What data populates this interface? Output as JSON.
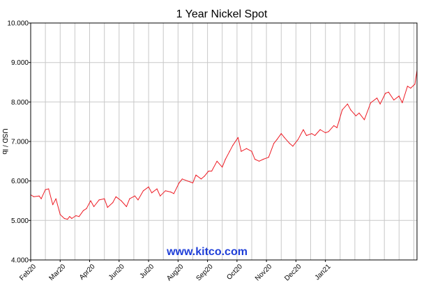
{
  "chart_data": {
    "type": "line",
    "title": "1 Year Nickel Spot",
    "watermark": "www.kitco.com",
    "xlabel": "",
    "ylabel": "USD / lb",
    "ylim": [
      4.0,
      10.0
    ],
    "yticks": [
      4.0,
      5.0,
      6.0,
      7.0,
      8.0,
      9.0,
      10.0
    ],
    "ytick_labels": [
      "4.000",
      "5.000",
      "6.000",
      "7.000",
      "8.000",
      "9.000",
      "10.000"
    ],
    "xlim": [
      "2020-02-10",
      "2021-02-11"
    ],
    "xticks": [
      {
        "label": "Feb20",
        "date": "2020-02-10"
      },
      {
        "label": "Mar20",
        "date": "2020-03-09"
      },
      {
        "label": "Apr20",
        "date": "2020-04-06"
      },
      {
        "label": "Jun20",
        "date": "2020-05-04"
      },
      {
        "label": "Jul20",
        "date": "2020-06-01"
      },
      {
        "label": "Aug20",
        "date": "2020-06-29"
      },
      {
        "label": "Sep20",
        "date": "2020-07-27"
      },
      {
        "label": "Oct20",
        "date": "2020-08-24"
      },
      {
        "label": "Nov20",
        "date": "2020-09-21"
      },
      {
        "label": "Dec20",
        "date": "2020-10-19"
      },
      {
        "label": "Jan21",
        "date": "2020-11-16"
      }
    ],
    "x_gridlines": [
      "2020-02-10",
      "2020-02-24",
      "2020-03-09",
      "2020-03-23",
      "2020-04-06",
      "2020-04-20",
      "2020-05-04",
      "2020-05-18",
      "2020-06-01",
      "2020-06-15",
      "2020-06-29",
      "2020-07-13",
      "2020-07-27",
      "2020-08-10",
      "2020-08-24",
      "2020-09-07",
      "2020-09-21",
      "2020-10-05",
      "2020-10-19",
      "2020-11-02",
      "2020-11-16",
      "2020-11-30",
      "2020-12-14",
      "2020-12-28",
      "2021-01-11",
      "2021-01-25",
      "2021-02-08"
    ],
    "grid": true,
    "legend": "none",
    "colors": {
      "line": "#ee1c25",
      "grid": "#c8c8c8",
      "axis": "#000000",
      "watermark": "#1f3fd8",
      "title": "#000000"
    },
    "series": [
      {
        "x": [
          "2020-02-10",
          "2020-02-13",
          "2020-02-18",
          "2020-02-20",
          "2020-02-24",
          "2020-02-27",
          "2020-03-02",
          "2020-03-05",
          "2020-03-09",
          "2020-03-11",
          "2020-03-13",
          "2020-03-16",
          "2020-03-18",
          "2020-03-20",
          "2020-03-24",
          "2020-03-27",
          "2020-03-31",
          "2020-04-03",
          "2020-04-07",
          "2020-04-10",
          "2020-04-15",
          "2020-04-20",
          "2020-04-23",
          "2020-04-28",
          "2020-05-01",
          "2020-05-06",
          "2020-05-11",
          "2020-05-14",
          "2020-05-19",
          "2020-05-22",
          "2020-05-27",
          "2020-06-01",
          "2020-06-04",
          "2020-06-09",
          "2020-06-12",
          "2020-06-17",
          "2020-06-22",
          "2020-06-25",
          "2020-06-30",
          "2020-07-03",
          "2020-07-08",
          "2020-07-13",
          "2020-07-16",
          "2020-07-21",
          "2020-07-24",
          "2020-07-28",
          "2020-07-31",
          "2020-08-05",
          "2020-08-10",
          "2020-08-13",
          "2020-08-17",
          "2020-08-20",
          "2020-08-25",
          "2020-08-28",
          "2020-09-02",
          "2020-09-07",
          "2020-09-10",
          "2020-09-14",
          "2020-09-18",
          "2020-09-23",
          "2020-09-28",
          "2020-10-01",
          "2020-10-05",
          "2020-10-08",
          "2020-10-13",
          "2020-10-16",
          "2020-10-21",
          "2020-10-26",
          "2020-10-29",
          "2020-11-03",
          "2020-11-06",
          "2020-11-11",
          "2020-11-16",
          "2020-11-19",
          "2020-11-24",
          "2020-11-27",
          "2020-12-02",
          "2020-12-07",
          "2020-12-10",
          "2020-12-15",
          "2020-12-18",
          "2020-12-23",
          "2020-12-29",
          "2021-01-04",
          "2021-01-07",
          "2021-01-12",
          "2021-01-15",
          "2021-01-20",
          "2021-01-25",
          "2021-01-28",
          "2021-02-02",
          "2021-02-05",
          "2021-02-09",
          "2021-02-11"
        ],
        "y": [
          5.65,
          5.6,
          5.62,
          5.55,
          5.78,
          5.8,
          5.4,
          5.55,
          5.15,
          5.1,
          5.05,
          5.03,
          5.1,
          5.05,
          5.12,
          5.1,
          5.25,
          5.3,
          5.5,
          5.35,
          5.52,
          5.55,
          5.33,
          5.45,
          5.6,
          5.5,
          5.35,
          5.55,
          5.62,
          5.52,
          5.75,
          5.85,
          5.7,
          5.8,
          5.62,
          5.75,
          5.72,
          5.68,
          5.95,
          6.05,
          6.0,
          5.95,
          6.15,
          6.05,
          6.12,
          6.25,
          6.25,
          6.5,
          6.35,
          6.55,
          6.75,
          6.9,
          7.1,
          6.75,
          6.82,
          6.75,
          6.55,
          6.5,
          6.55,
          6.6,
          6.95,
          7.05,
          7.2,
          7.1,
          6.95,
          6.88,
          7.05,
          7.3,
          7.15,
          7.2,
          7.15,
          7.3,
          7.22,
          7.25,
          7.4,
          7.35,
          7.8,
          7.95,
          7.8,
          7.65,
          7.72,
          7.55,
          7.98,
          8.1,
          7.95,
          8.22,
          8.25,
          8.05,
          8.15,
          7.98,
          8.4,
          8.35,
          8.45,
          8.8
        ]
      }
    ]
  }
}
